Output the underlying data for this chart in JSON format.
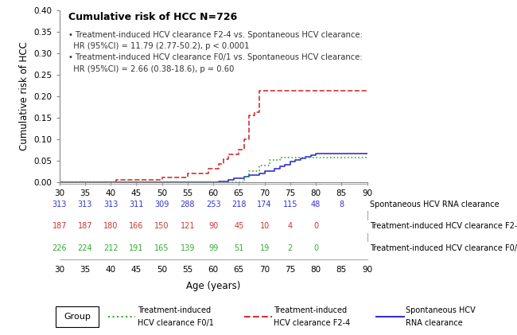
{
  "title": "Cumulative risk of HCC N=726",
  "annotation_lines": [
    "• Treatment-induced HCV clearance F2-4 vs. Spontaneous HCV clearance:",
    "  HR (95%CI) = 11.79 (2.77-50.2), p < 0.0001",
    "• Treatment-induced HCV clearance F0/1 vs. Spontaneous HCV clearance:",
    "  HR (95%CI) = 2.66 (0.38-18.6), p = 0.60"
  ],
  "ylabel": "Cumulative risk of HCC",
  "xlabel": "Age (years)",
  "ylim": [
    0.0,
    0.4
  ],
  "xlim": [
    30,
    90
  ],
  "yticks": [
    0.0,
    0.05,
    0.1,
    0.15,
    0.2,
    0.25,
    0.3,
    0.35,
    0.4
  ],
  "xticks": [
    30,
    35,
    40,
    45,
    50,
    55,
    60,
    65,
    70,
    75,
    80,
    85,
    90
  ],
  "blue_x": [
    30,
    60,
    61,
    62,
    63,
    64,
    65,
    66,
    67,
    68,
    69,
    70,
    71,
    72,
    73,
    74,
    75,
    76,
    77,
    78,
    79,
    80,
    90
  ],
  "blue_y": [
    0.0,
    0.0,
    0.003,
    0.003,
    0.006,
    0.01,
    0.01,
    0.013,
    0.017,
    0.017,
    0.022,
    0.027,
    0.027,
    0.032,
    0.037,
    0.042,
    0.048,
    0.052,
    0.057,
    0.06,
    0.063,
    0.068,
    0.068
  ],
  "red_x": [
    30,
    40,
    41,
    45,
    50,
    53,
    55,
    57,
    59,
    60,
    61,
    62,
    63,
    64,
    65,
    66,
    67,
    68,
    69,
    70,
    75,
    90
  ],
  "red_y": [
    0.0,
    0.0,
    0.006,
    0.006,
    0.011,
    0.011,
    0.022,
    0.022,
    0.033,
    0.033,
    0.044,
    0.055,
    0.066,
    0.066,
    0.077,
    0.1,
    0.156,
    0.163,
    0.213,
    0.213,
    0.213,
    0.213
  ],
  "green_x": [
    30,
    65,
    66,
    67,
    68,
    69,
    70,
    71,
    72,
    73,
    74,
    90
  ],
  "green_y": [
    0.0,
    0.0,
    0.013,
    0.026,
    0.026,
    0.04,
    0.04,
    0.052,
    0.052,
    0.058,
    0.058,
    0.058
  ],
  "blue_color": "#3333cc",
  "red_color": "#cc3333",
  "green_color": "#33aa33",
  "at_risk_ages": [
    30,
    35,
    40,
    45,
    50,
    55,
    60,
    65,
    70,
    75,
    80,
    85
  ],
  "blue_at_risk": [
    313,
    313,
    313,
    311,
    309,
    288,
    253,
    218,
    174,
    115,
    48,
    8
  ],
  "red_at_risk": [
    187,
    187,
    180,
    166,
    150,
    121,
    90,
    45,
    10,
    4,
    0,
    null
  ],
  "green_at_risk": [
    226,
    224,
    212,
    191,
    165,
    139,
    99,
    51,
    19,
    2,
    0,
    null
  ],
  "blue_label": "Spontaneous HCV RNA clearance",
  "red_label": "Treatment-induced HCV clearance F2-4",
  "green_label": "Treatment-induced HCV clearance F0/1"
}
